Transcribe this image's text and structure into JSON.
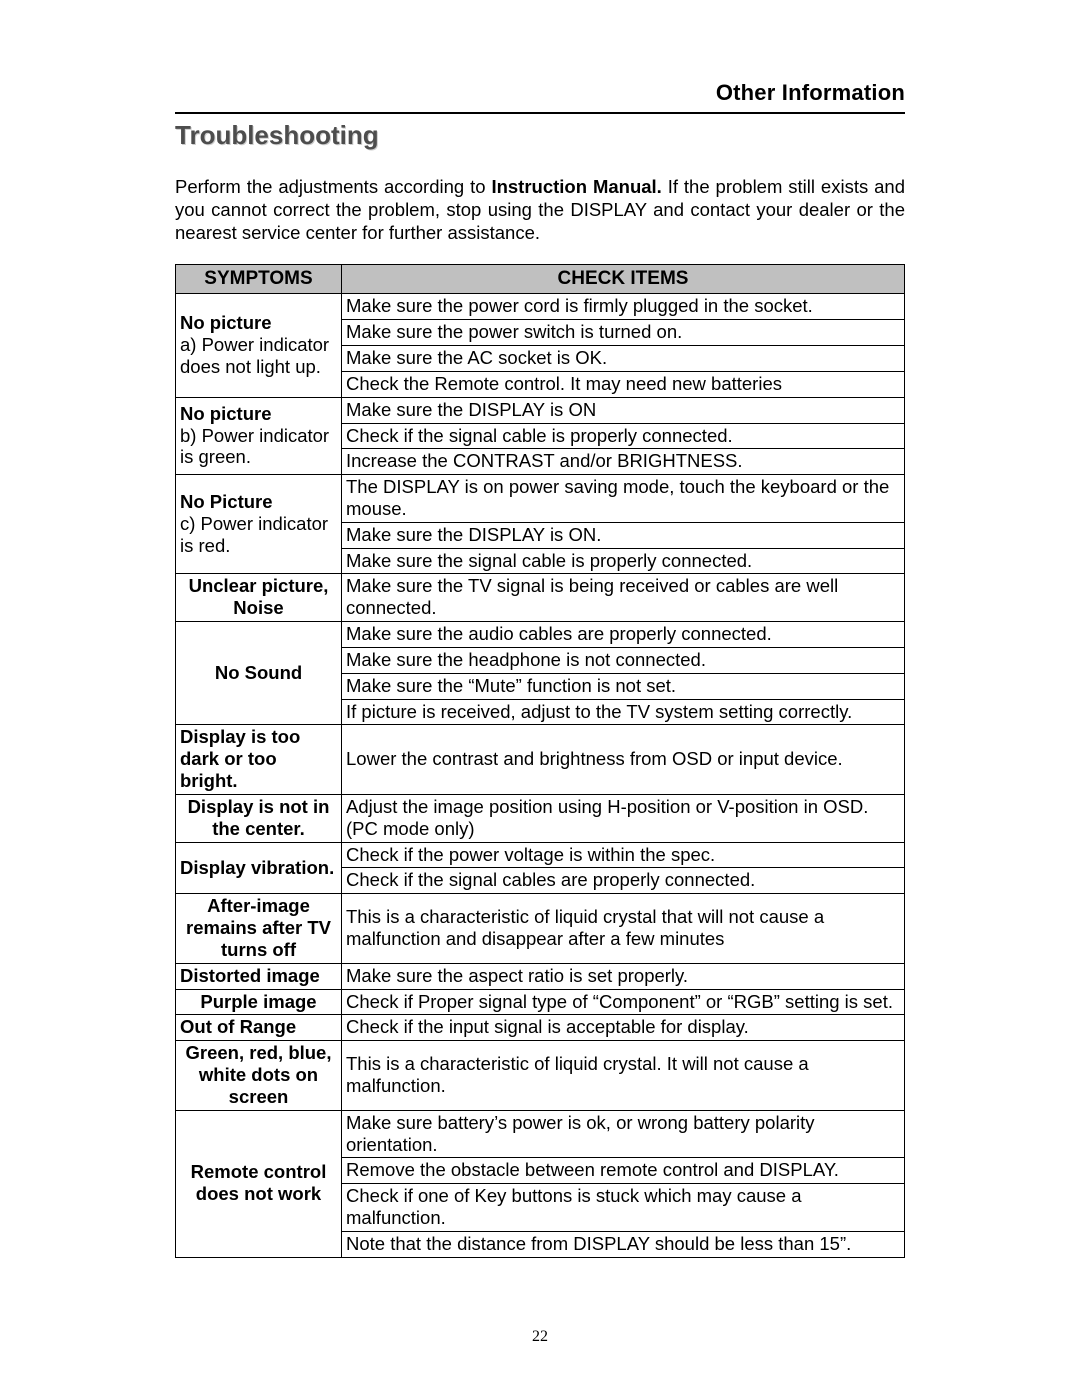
{
  "header": {
    "section": "Other Information"
  },
  "title": "Troubleshooting",
  "intro": {
    "pre": "Perform the adjustments according to ",
    "bold": "Instruction Manual.",
    "post": " If the problem still exists and you cannot correct the problem, stop using the DISPLAY and contact your dealer or the nearest service center for further assistance."
  },
  "table": {
    "head": {
      "symptoms": "SYMPTOMS",
      "check": "CHECK ITEMS"
    },
    "groups": [
      {
        "title": "No picture",
        "sub": "a) Power indicator does not light up.",
        "align": "left",
        "checks": [
          "Make sure the power cord is firmly plugged in the socket.",
          "Make sure the power switch is turned on.",
          "Make sure the AC socket is OK.",
          "Check the Remote control. It may need new batteries"
        ]
      },
      {
        "title": "No picture",
        "sub": "b) Power indicator is green.",
        "align": "left",
        "checks": [
          "Make sure the DISPLAY is ON",
          "Check if the signal cable is properly connected.",
          "Increase the CONTRAST and/or BRIGHTNESS."
        ]
      },
      {
        "title": "No Picture",
        "sub": "c) Power indicator is red.",
        "align": "left",
        "checks": [
          "The DISPLAY is on power saving mode, touch the keyboard or the mouse.",
          "Make sure the DISPLAY is ON.",
          "Make sure the signal cable is properly connected."
        ]
      },
      {
        "title": "Unclear picture, Noise",
        "sub": "",
        "align": "center",
        "checks": [
          "Make sure the TV signal is being received or cables are well connected."
        ]
      },
      {
        "title": "No Sound",
        "sub": "",
        "align": "center",
        "checks": [
          "Make sure the audio cables are properly connected.",
          "Make sure the headphone is not connected.",
          "Make sure the “Mute” function is not set.",
          "If picture is received, adjust to the TV system setting correctly."
        ]
      },
      {
        "title": "Display is too dark or too bright.",
        "sub": "",
        "align": "left",
        "checks": [
          "Lower the contrast and brightness from OSD or input device."
        ]
      },
      {
        "title": "Display is not in the center.",
        "sub": "",
        "align": "center",
        "checks": [
          "Adjust the image position using H-position or V-position in OSD. (PC mode only)"
        ]
      },
      {
        "title": "Display vibration.",
        "sub": "",
        "align": "left",
        "checks": [
          "Check if the power voltage is within the spec.",
          "Check if the signal cables are properly connected."
        ]
      },
      {
        "title": "After-image remains after TV turns off",
        "sub": "",
        "align": "center",
        "checks": [
          "This is a characteristic of liquid crystal that will not cause a malfunction and disappear after a few minutes"
        ]
      },
      {
        "title": "Distorted image",
        "sub": "",
        "align": "left",
        "checks": [
          "Make sure the aspect ratio is set properly."
        ]
      },
      {
        "title": "Purple image",
        "sub": "",
        "align": "center",
        "checks": [
          "Check if Proper signal type of “Component” or “RGB” setting is set."
        ]
      },
      {
        "title": "Out of Range",
        "sub": "",
        "align": "left",
        "checks": [
          "Check if the input signal is acceptable for display."
        ]
      },
      {
        "title": "Green, red, blue, white dots on screen",
        "sub": "",
        "align": "center",
        "checks": [
          "This is a characteristic of liquid crystal. It will not cause a malfunction."
        ]
      },
      {
        "title": "Remote control does not work",
        "sub": "",
        "align": "center",
        "checks": [
          "Make sure battery’s power is ok, or wrong battery polarity orientation.",
          "Remove the obstacle between remote control and DISPLAY.",
          "Check if one of Key buttons is stuck which may cause a malfunction.",
          "Note that the distance from DISPLAY should be less than 15”."
        ]
      }
    ]
  },
  "pageNumber": "22"
}
